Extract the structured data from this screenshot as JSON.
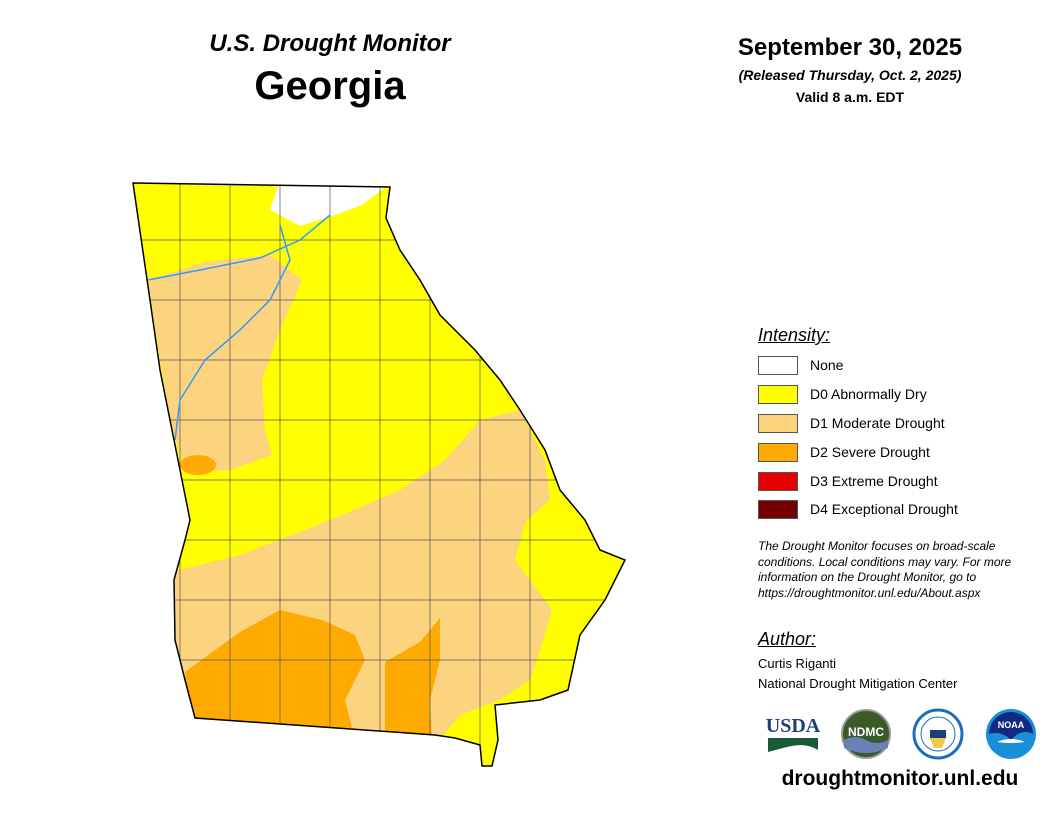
{
  "header": {
    "product": "U.S. Drought Monitor",
    "state": "Georgia",
    "date": "September 30, 2025",
    "released": "(Released Thursday, Oct. 2, 2025)",
    "valid": "Valid 8 a.m. EDT"
  },
  "legend": {
    "title": "Intensity:",
    "items": [
      {
        "label": "None",
        "color": "#FFFFFF"
      },
      {
        "label": "D0 Abnormally Dry",
        "color": "#FFFF00"
      },
      {
        "label": "D1 Moderate Drought",
        "color": "#FCD37F"
      },
      {
        "label": "D2 Severe Drought",
        "color": "#FFAA00"
      },
      {
        "label": "D3 Extreme Drought",
        "color": "#E60000"
      },
      {
        "label": "D4 Exceptional Drought",
        "color": "#730000"
      }
    ]
  },
  "note": "The Drought Monitor focuses on broad-scale conditions. Local conditions may vary. For more information on the Drought Monitor, go to https://droughtmonitor.unl.edu/About.aspx",
  "author": {
    "title": "Author:",
    "name": "Curtis Riganti",
    "org": "National Drought Mitigation Center"
  },
  "logos": {
    "usda": "USDA",
    "ndmc": "NDMC",
    "doc": "DOC",
    "noaa": "NOAA"
  },
  "footer_url": "droughtmonitor.unl.edu"
}
